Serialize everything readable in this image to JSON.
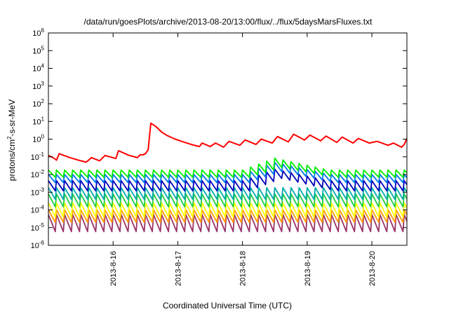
{
  "chart_data": {
    "type": "line",
    "title": "/data/run/goesPlots/archive/2013-08-20/13:00/flux/../flux/5daysMarsFluxes.txt",
    "xlabel": "Coordinated Universal Time (UTC)",
    "ylabel": {
      "prefix": "protons/cm",
      "sup": "2",
      "suffix": "-s-sr-MeV"
    },
    "y_scale": "log",
    "ylim": [
      1e-06,
      1000000.0
    ],
    "y_ticks": [
      {
        "value": 1e-06,
        "base": "10",
        "exp": "-6"
      },
      {
        "value": 1e-05,
        "base": "10",
        "exp": "-5"
      },
      {
        "value": 0.0001,
        "base": "10",
        "exp": "-4"
      },
      {
        "value": 0.001,
        "base": "10",
        "exp": "-3"
      },
      {
        "value": 0.01,
        "base": "10",
        "exp": "-2"
      },
      {
        "value": 0.1,
        "base": "10",
        "exp": "-1"
      },
      {
        "value": 1,
        "base": "10",
        "exp": "0"
      },
      {
        "value": 10,
        "base": "10",
        "exp": "1"
      },
      {
        "value": 100,
        "base": "10",
        "exp": "2"
      },
      {
        "value": 1000,
        "base": "10",
        "exp": "3"
      },
      {
        "value": 10000,
        "base": "10",
        "exp": "4"
      },
      {
        "value": 100000,
        "base": "10",
        "exp": "5"
      },
      {
        "value": 1000000,
        "base": "10",
        "exp": "6"
      }
    ],
    "xlim": [
      "2013-08-15T00:00",
      "2013-08-20T13:00"
    ],
    "x_ticks": [
      {
        "value": "2013-08-16T00:00",
        "label": "2013-8-16"
      },
      {
        "value": "2013-08-17T00:00",
        "label": "2013-8-17"
      },
      {
        "value": "2013-08-18T00:00",
        "label": "2013-8-18"
      },
      {
        "value": "2013-08-19T00:00",
        "label": "2013-8-19"
      },
      {
        "value": "2013-08-20T00:00",
        "label": "2013-8-20"
      }
    ],
    "grid": false,
    "legend": "none",
    "series": [
      {
        "color": "#ff0000",
        "points": [
          [
            "2013-08-15T00:00",
            0.12
          ],
          [
            "2013-08-15T02:00",
            0.085
          ],
          [
            "2013-08-15T03:00",
            0.065
          ],
          [
            "2013-08-15T04:00",
            0.15
          ],
          [
            "2013-08-15T08:00",
            0.09
          ],
          [
            "2013-08-15T12:00",
            0.06
          ],
          [
            "2013-08-15T14:00",
            0.05
          ],
          [
            "2013-08-15T16:00",
            0.09
          ],
          [
            "2013-08-15T19:00",
            0.06
          ],
          [
            "2013-08-15T21:00",
            0.12
          ],
          [
            "2013-08-16T01:00",
            0.08
          ],
          [
            "2013-08-16T02:00",
            0.22
          ],
          [
            "2013-08-16T06:00",
            0.12
          ],
          [
            "2013-08-16T09:00",
            0.09
          ],
          [
            "2013-08-16T10:00",
            0.13
          ],
          [
            "2013-08-16T11:00",
            0.13
          ],
          [
            "2013-08-16T12:00",
            0.15
          ],
          [
            "2013-08-16T13:00",
            0.25
          ],
          [
            "2013-08-16T14:00",
            8.0
          ],
          [
            "2013-08-16T16:00",
            5.0
          ],
          [
            "2013-08-16T18:00",
            2.5
          ],
          [
            "2013-08-16T20:00",
            1.6
          ],
          [
            "2013-08-16T23:00",
            1.0
          ],
          [
            "2013-08-17T02:00",
            0.7
          ],
          [
            "2013-08-17T05:00",
            0.5
          ],
          [
            "2013-08-17T08:00",
            0.38
          ],
          [
            "2013-08-17T09:00",
            0.6
          ],
          [
            "2013-08-17T12:00",
            0.38
          ],
          [
            "2013-08-17T14:00",
            0.6
          ],
          [
            "2013-08-17T17:00",
            0.35
          ],
          [
            "2013-08-17T19:00",
            0.75
          ],
          [
            "2013-08-17T23:00",
            0.45
          ],
          [
            "2013-08-18T01:00",
            0.9
          ],
          [
            "2013-08-18T05:00",
            0.5
          ],
          [
            "2013-08-18T07:00",
            1.0
          ],
          [
            "2013-08-18T11:00",
            0.6
          ],
          [
            "2013-08-18T13:00",
            1.4
          ],
          [
            "2013-08-18T17:00",
            0.7
          ],
          [
            "2013-08-18T19:00",
            1.9
          ],
          [
            "2013-08-18T23:00",
            0.9
          ],
          [
            "2013-08-19T01:00",
            1.7
          ],
          [
            "2013-08-19T05:00",
            0.8
          ],
          [
            "2013-08-19T07:00",
            1.5
          ],
          [
            "2013-08-19T11:00",
            0.65
          ],
          [
            "2013-08-19T13:00",
            1.3
          ],
          [
            "2013-08-19T17:00",
            0.6
          ],
          [
            "2013-08-19T19:00",
            1.1
          ],
          [
            "2013-08-19T23:00",
            0.6
          ],
          [
            "2013-08-20T02:00",
            0.75
          ],
          [
            "2013-08-20T06:00",
            0.45
          ],
          [
            "2013-08-20T08:00",
            0.6
          ],
          [
            "2013-08-20T11:00",
            0.35
          ],
          [
            "2013-08-20T12:00",
            0.5
          ],
          [
            "2013-08-20T13:00",
            1.1
          ]
        ]
      },
      {
        "color": "#00ee00",
        "sawtooth": {
          "peak": 0.018,
          "trough": 0.007
        },
        "bump": {
          "peak": 0.085,
          "trough": 0.025
        }
      },
      {
        "color": "#0077ee",
        "sawtooth": {
          "peak": 0.01,
          "trough": 0.0035
        },
        "bump": {
          "peak": 0.05,
          "trough": 0.015
        }
      },
      {
        "color": "#0000bb",
        "sawtooth": {
          "peak": 0.0045,
          "trough": 0.0012
        },
        "bump": {
          "peak": 0.02,
          "trough": 0.006
        }
      },
      {
        "color": "#00aaaa",
        "sawtooth": {
          "peak": 0.0018,
          "trough": 0.0004
        }
      },
      {
        "color": "#22cc44",
        "sawtooth": {
          "peak": 0.0008,
          "trough": 0.00015
        }
      },
      {
        "color": "#ffff00",
        "sawtooth": {
          "peak": 0.00025,
          "trough": 4e-05
        }
      },
      {
        "color": "#ff9900",
        "sawtooth": {
          "peak": 0.0001,
          "trough": 2e-05
        }
      },
      {
        "color": "#993366",
        "sawtooth": {
          "peak": 5.5e-05,
          "trough": 6e-06
        }
      }
    ]
  }
}
